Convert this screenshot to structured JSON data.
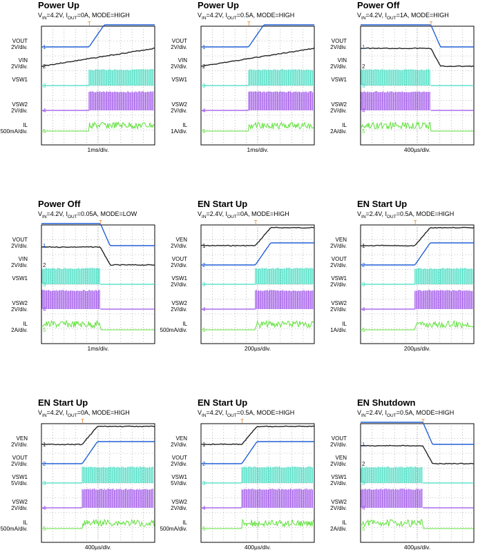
{
  "chart_data": [
    {
      "type": "line",
      "title": "Power Up",
      "subtitle": "VIN=4.2V, IOUT=0A, MODE=HIGH",
      "xlabel": "1ms/div.",
      "channels": [
        {
          "name": "VOUT",
          "scale": "2V/div."
        },
        {
          "name": "VIN",
          "scale": "2V/div."
        },
        {
          "name": "VSW1",
          "scale": ""
        },
        {
          "name": "VSW2",
          "scale": "2V/div."
        },
        {
          "name": "IL",
          "scale": "500mA/div."
        }
      ]
    },
    {
      "type": "line",
      "title": "Power Up",
      "subtitle": "VIN=4.2V, IOUT=0.5A, MODE=HIGH",
      "xlabel": "1ms/div.",
      "channels": [
        {
          "name": "VOUT",
          "scale": "2V/div."
        },
        {
          "name": "VIN",
          "scale": "2V/div."
        },
        {
          "name": "VSW1",
          "scale": ""
        },
        {
          "name": "VSW2",
          "scale": "2V/div."
        },
        {
          "name": "IL",
          "scale": "1A/div."
        }
      ]
    },
    {
      "type": "line",
      "title": "Power Off",
      "subtitle": "VIN=4.2V, IOUT=1A, MODE=HIGH",
      "xlabel": "400µs/div.",
      "channels": [
        {
          "name": "VOUT",
          "scale": "2V/div."
        },
        {
          "name": "VIN",
          "scale": "2V/div."
        },
        {
          "name": "VSW1",
          "scale": ""
        },
        {
          "name": "VSW2",
          "scale": "2V/div."
        },
        {
          "name": "IL",
          "scale": "2A/div."
        }
      ]
    },
    {
      "type": "line",
      "title": "Power Off",
      "subtitle": "VIN=4.2V, IOUT=0.05A, MODE=LOW",
      "xlabel": "1ms/div.",
      "channels": [
        {
          "name": "VOUT",
          "scale": "2V/div."
        },
        {
          "name": "VIN",
          "scale": "2V/div."
        },
        {
          "name": "VSW1",
          "scale": ""
        },
        {
          "name": "VSW2",
          "scale": "2V/div."
        },
        {
          "name": "IL",
          "scale": "2A/div."
        }
      ]
    },
    {
      "type": "line",
      "title": "EN Start Up",
      "subtitle": "VIN=2.4V, IOUT=0A, MODE=HIGH",
      "xlabel": "200µs/div.",
      "channels": [
        {
          "name": "VEN",
          "scale": "2V/div."
        },
        {
          "name": "VOUT",
          "scale": "2V/div."
        },
        {
          "name": "VSW1",
          "scale": "2V/div."
        },
        {
          "name": "VSW2",
          "scale": "2V/div."
        },
        {
          "name": "IL",
          "scale": "500mA/div."
        }
      ]
    },
    {
      "type": "line",
      "title": "EN Start Up",
      "subtitle": "VIN=2.4V, IOUT=0.5A, MODE=HIGH",
      "xlabel": "200µs/div.",
      "channels": [
        {
          "name": "VEN",
          "scale": "2V/div."
        },
        {
          "name": "VOUT",
          "scale": "2V/div."
        },
        {
          "name": "VSW1",
          "scale": "2V/div."
        },
        {
          "name": "VSW2",
          "scale": "2V/div."
        },
        {
          "name": "IL",
          "scale": "1A/div."
        }
      ]
    },
    {
      "type": "line",
      "title": "EN Start Up",
      "subtitle": "VIN=4.2V, IOUT=0A, MODE=HIGH",
      "xlabel": "400µs/div.",
      "channels": [
        {
          "name": "VEN",
          "scale": "2V/div."
        },
        {
          "name": "VOUT",
          "scale": "2V/div."
        },
        {
          "name": "VSW1",
          "scale": "5V/div."
        },
        {
          "name": "VSW2",
          "scale": "2V/div."
        },
        {
          "name": "IL",
          "scale": "500mA/div."
        }
      ]
    },
    {
      "type": "line",
      "title": "EN Start Up",
      "subtitle": "VIN=4.2V, IOUT=0.5A, MODE=HIGH",
      "xlabel": "400µs/div.",
      "channels": [
        {
          "name": "VEN",
          "scale": "2V/div."
        },
        {
          "name": "VOUT",
          "scale": "2V/div."
        },
        {
          "name": "VSW1",
          "scale": "5V/div."
        },
        {
          "name": "VSW2",
          "scale": "2V/div."
        },
        {
          "name": "IL",
          "scale": "500mA/div."
        }
      ]
    },
    {
      "type": "line",
      "title": "EN Shutdown",
      "subtitle": "VIN=2.4V, IOUT=0.5A, MODE=HIGH",
      "xlabel": "400µs/div.",
      "channels": [
        {
          "name": "VOUT",
          "scale": "2V/div."
        },
        {
          "name": "VEN",
          "scale": "2V/div."
        },
        {
          "name": "VSW1",
          "scale": "2V/div."
        },
        {
          "name": "VSW2",
          "scale": "2V/div."
        },
        {
          "name": "IL",
          "scale": "2A/div."
        }
      ]
    }
  ],
  "colors": {
    "vout": "#1f5fd6",
    "vin": "#222222",
    "ven": "#222222",
    "vsw1": "#3ddcc0",
    "vsw2": "#9b4de8",
    "il": "#5fe03a",
    "grid": "#888888"
  }
}
